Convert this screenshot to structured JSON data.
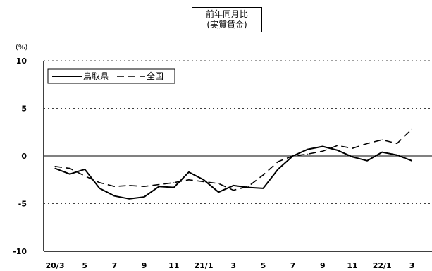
{
  "chart_data": {
    "type": "line",
    "title": "前年同月比",
    "subtitle": "(実質賃金)",
    "ylabel": "(%)",
    "xlabel": "",
    "ylim": [
      -10,
      10
    ],
    "yticks": [
      "10",
      "5",
      "0",
      "-5",
      "-10"
    ],
    "grid": "dotted horizontal at 5 and -5; solid line at 0",
    "legend_position": "top-left",
    "categories": [
      "20/3",
      "4",
      "5",
      "6",
      "7",
      "8",
      "9",
      "10",
      "11",
      "12",
      "21/1",
      "2",
      "3",
      "4",
      "5",
      "6",
      "7",
      "8",
      "9",
      "10",
      "11",
      "12",
      "22/1",
      "2",
      "3"
    ],
    "xtick_labels": [
      "20/3",
      "5",
      "7",
      "9",
      "11",
      "21/1",
      "3",
      "5",
      "7",
      "9",
      "11",
      "22/1",
      "3"
    ],
    "series": [
      {
        "name": "鳥取県",
        "style": "solid",
        "color": "#000000",
        "values": [
          -1.3,
          -1.9,
          -1.4,
          -3.4,
          -4.2,
          -4.5,
          -4.3,
          -3.2,
          -3.3,
          -1.7,
          -2.5,
          -3.8,
          -3.1,
          -3.3,
          -3.4,
          -1.4,
          0.0,
          0.7,
          1.0,
          0.6,
          -0.1,
          -0.5,
          0.4,
          0.1,
          -0.5
        ]
      },
      {
        "name": "全国",
        "style": "dashed",
        "color": "#000000",
        "values": [
          -1.1,
          -1.3,
          -2.1,
          -2.8,
          -3.2,
          -3.1,
          -3.2,
          -3.0,
          -2.8,
          -2.5,
          -2.7,
          -2.9,
          -3.6,
          -3.2,
          -2.0,
          -0.6,
          0.0,
          0.2,
          0.5,
          1.1,
          0.8,
          1.3,
          1.7,
          1.3,
          2.8
        ]
      }
    ]
  }
}
